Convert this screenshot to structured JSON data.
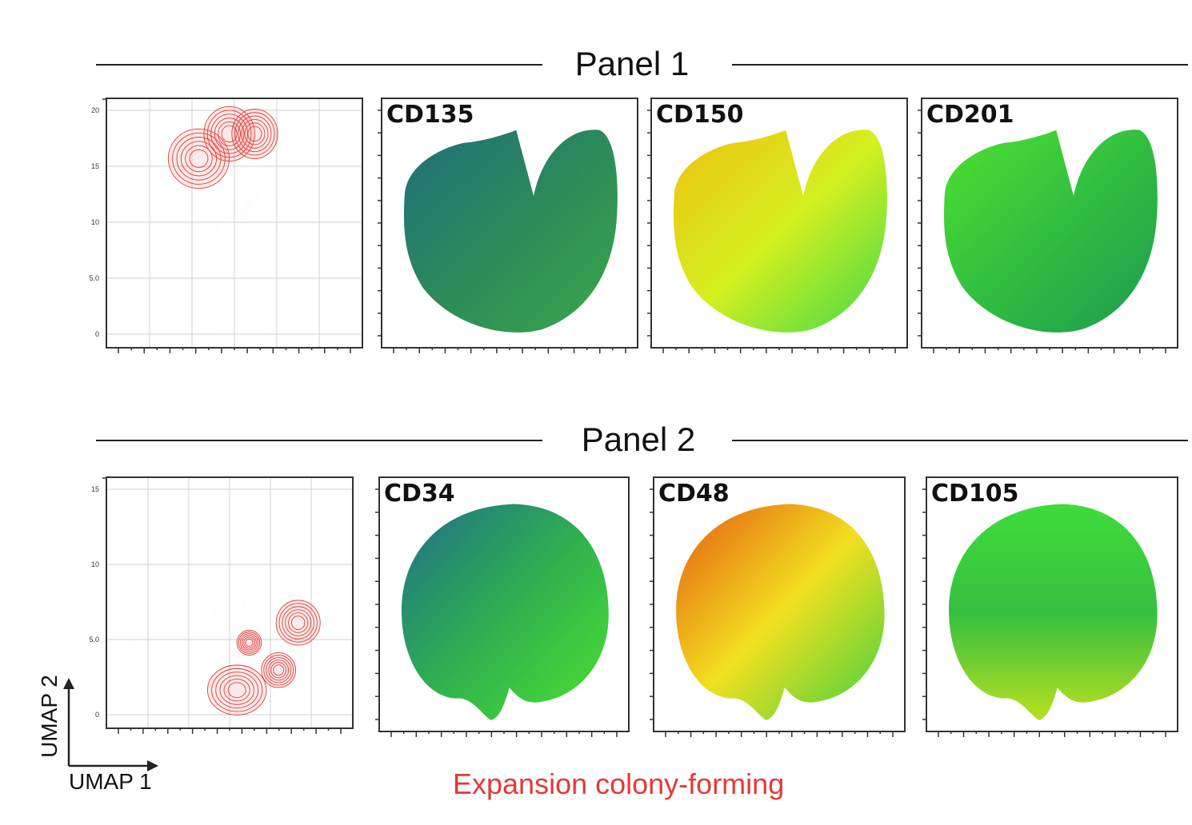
{
  "panels": [
    {
      "title": "Panel 1",
      "contour": {
        "yticks": [
          "20",
          "15",
          "10",
          "5.0",
          "0"
        ],
        "shape": "heart",
        "highlight_color": "#e53935"
      },
      "markers": [
        "CD135",
        "CD150",
        "CD201"
      ]
    },
    {
      "title": "Panel 2",
      "contour": {
        "yticks": [
          "15",
          "10",
          "5.0",
          "0"
        ],
        "shape": "round",
        "highlight_color": "#e53935"
      },
      "markers": [
        "CD34",
        "CD48",
        "CD105"
      ]
    }
  ],
  "axes": {
    "x": "UMAP 1",
    "y": "UMAP 2"
  },
  "legend": {
    "label": "Expansion colony-forming",
    "color": "#e53935"
  },
  "chart_data": {
    "type": "scatter",
    "description_units": "UMAP embedding coloured by marker expression",
    "panels": [
      {
        "panel": "Panel 1",
        "ylim": [
          0,
          20
        ],
        "grid": true,
        "markers": [
          {
            "name": "CD135",
            "level": "low",
            "colors": [
              "#1f6f7a",
              "#2c8a5a",
              "#3aa84a"
            ]
          },
          {
            "name": "CD150",
            "level": "high",
            "colors": [
              "#f0c010",
              "#d4f020",
              "#3fd84a"
            ]
          },
          {
            "name": "CD201",
            "level": "medium",
            "colors": [
              "#50e030",
              "#2fbf40",
              "#1f9a50"
            ]
          }
        ]
      },
      {
        "panel": "Panel 2",
        "ylim": [
          0,
          15
        ],
        "grid": true,
        "markers": [
          {
            "name": "CD34",
            "level": "medium",
            "colors": [
              "#1f6f8a",
              "#2fb050",
              "#4ee030"
            ]
          },
          {
            "name": "CD48",
            "level": "high",
            "colors": [
              "#e55a10",
              "#f2e020",
              "#3fd040"
            ]
          },
          {
            "name": "CD105",
            "level": "medium",
            "colors": [
              "#3fdc3a",
              "#35c040",
              "#b8e020"
            ]
          }
        ]
      }
    ]
  }
}
